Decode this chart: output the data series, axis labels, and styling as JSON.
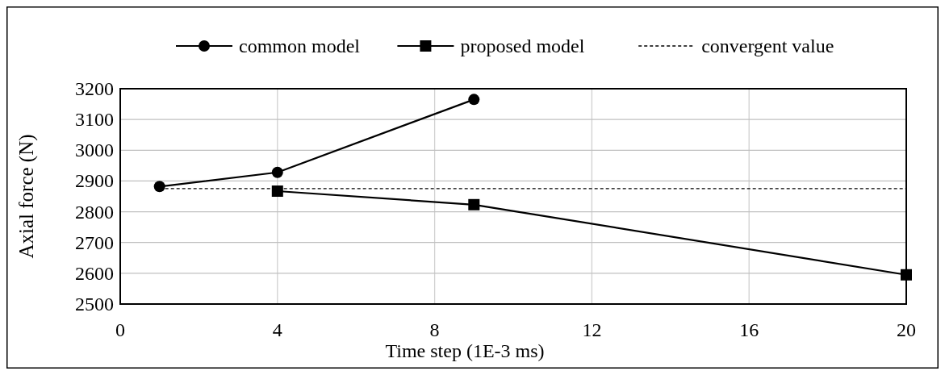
{
  "chart_data": {
    "type": "line",
    "xlabel": "Time step (1E-3 ms)",
    "ylabel": "Axial force (N)",
    "xlim": [
      0,
      20
    ],
    "xticks": [
      0,
      4,
      8,
      12,
      16,
      20
    ],
    "ylim": [
      2500,
      3200
    ],
    "yticks": [
      2500,
      2600,
      2700,
      2800,
      2900,
      3000,
      3100,
      3200
    ],
    "grid": true,
    "legend": "top",
    "series": [
      {
        "name": "common model",
        "color": "#000000",
        "x": [
          1,
          4,
          9
        ],
        "values": [
          2882,
          2928,
          3165
        ],
        "marker": "circle",
        "line_style": "solid"
      },
      {
        "name": "proposed model",
        "color": "#000000",
        "x": [
          4,
          9,
          20
        ],
        "values": [
          2867,
          2823,
          2595
        ],
        "marker": "square",
        "line_style": "solid"
      },
      {
        "name": "convergent value",
        "color": "#000000",
        "x": [
          1,
          20
        ],
        "values": [
          2875,
          2875
        ],
        "marker": "none",
        "line_style": "dashed"
      }
    ]
  }
}
